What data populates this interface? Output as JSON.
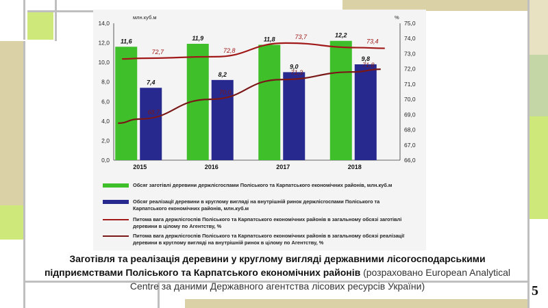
{
  "slide": {
    "page_number": "5",
    "caption_main": "Заготівля та реалізація деревини у круглому вигляді державними лісогосподарськими підприємствами Поліського та Карпатського економічних районів",
    "caption_note": "(розраховано European Analytical Centre за даними Державного агентства лісових ресурсів України)"
  },
  "colors": {
    "bar_harvest": "#3fbf2a",
    "bar_sales": "#27298f",
    "line_harvest": "#a01818",
    "line_sales": "#7a1818",
    "deco_lime": "#cfe87a",
    "deco_tan": "#dad2a6",
    "deco_sage": "#c5d6a6",
    "deco_gray": "#bfbfbf"
  },
  "chart_data": {
    "type": "bar",
    "categories": [
      "2015",
      "2016",
      "2017",
      "2018"
    ],
    "left_axis_unit": "млн.куб.м",
    "right_axis_unit": "%",
    "ylim": [
      0,
      14
    ],
    "y2lim": [
      66,
      75
    ],
    "left_ticks": [
      "0,0",
      "2,0",
      "4,0",
      "6,0",
      "8,0",
      "10,0",
      "12,0",
      "14,0"
    ],
    "right_ticks": [
      "66,0",
      "67,0",
      "68,0",
      "69,0",
      "70,0",
      "71,0",
      "72,0",
      "73,0",
      "74,0",
      "75,0"
    ],
    "bars": [
      {
        "key": "harvest",
        "values": [
          11.6,
          11.9,
          11.8,
          12.2
        ],
        "labels": [
          "11,6",
          "11,9",
          "11,8",
          "12,2"
        ]
      },
      {
        "key": "sales",
        "values": [
          7.4,
          8.2,
          9.0,
          9.8
        ],
        "labels": [
          "7,4",
          "8,2",
          "9,0",
          "9,8"
        ]
      }
    ],
    "lines": [
      {
        "key": "harvest_share",
        "values": [
          72.7,
          72.8,
          73.7,
          73.4
        ],
        "labels": [
          "72,7",
          "72,8",
          "73,7",
          "73,4"
        ]
      },
      {
        "key": "sales_share",
        "values": [
          68.7,
          70.0,
          71.3,
          71.8
        ],
        "labels": [
          "68,7",
          "70,0",
          "71,3",
          "71,8"
        ]
      }
    ],
    "legend": [
      "Обсяг заготівлі деревини держлісгоспами Поліського та Карпатського економічних районів, млн.куб.м",
      "Обсяг реалізації деревини в круглому вигляді на внутрішній  ринок держлісгоспами Поліського та Карпатського економічних районів, млн.куб.м",
      "Питома вага держлісгоспів Поліського та Карпатського економічних районів в загальному обсязі заготівлі деревини в цілому по Агентству, %",
      "Питома вага держлісгоспів Поліського та Карпатського економічних районів в загальному обсязі реалізації деревини в круглому вигляді на внутрішній  ринок в цілому по Агентству, %"
    ],
    "legend_placement": "bottom",
    "grid": false
  }
}
